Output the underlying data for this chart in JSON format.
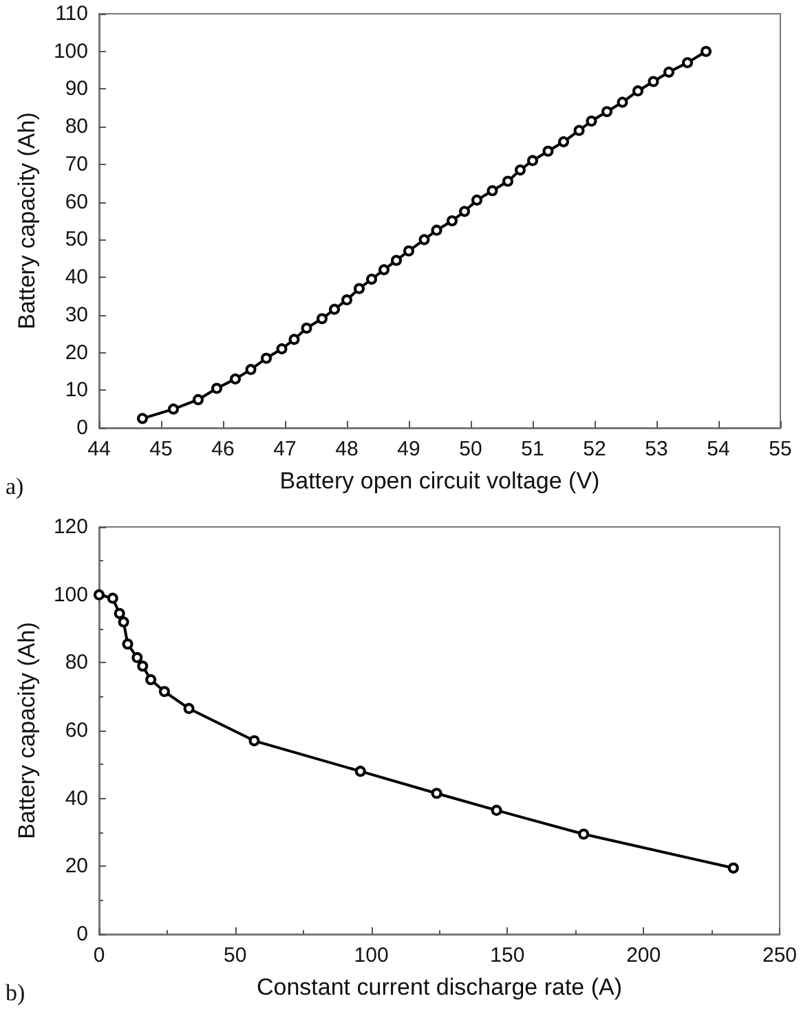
{
  "chart_data": [
    {
      "type": "line",
      "xlabel": "Battery open circuit voltage (V)",
      "ylabel": "Battery capacity (Ah)",
      "annotations": [
        "a)"
      ],
      "x": [
        44.7,
        45.2,
        45.6,
        45.9,
        46.2,
        46.45,
        46.7,
        46.95,
        47.15,
        47.35,
        47.6,
        47.8,
        48.0,
        48.2,
        48.4,
        48.6,
        48.8,
        49.0,
        49.25,
        49.45,
        49.7,
        49.9,
        50.1,
        50.35,
        50.6,
        50.8,
        51.0,
        51.25,
        51.5,
        51.75,
        51.95,
        52.2,
        52.45,
        52.7,
        52.95,
        53.2,
        53.5,
        53.8
      ],
      "series": [
        {
          "color": "#000000",
          "values": [
            2.5,
            5,
            7.5,
            10.5,
            13,
            15.5,
            18.5,
            21,
            23.5,
            26.5,
            29,
            31.5,
            34,
            37,
            39.5,
            42,
            44.5,
            47,
            50,
            52.5,
            55,
            57.5,
            60.5,
            63,
            65.5,
            68.5,
            71,
            73.5,
            76,
            79,
            81.5,
            84,
            86.5,
            89.5,
            92,
            94.5,
            97,
            100
          ]
        }
      ],
      "xlim": [
        44,
        55
      ],
      "xticks": [
        44,
        45,
        46,
        47,
        48,
        49,
        50,
        51,
        52,
        53,
        54,
        55
      ],
      "ylim": [
        0,
        110
      ],
      "yticks": [
        0,
        10,
        20,
        30,
        40,
        50,
        60,
        70,
        80,
        90,
        100,
        110
      ],
      "grid": false,
      "marker": "circle",
      "line_style": "solid"
    },
    {
      "type": "line",
      "xlabel": "Constant current discharge rate (A)",
      "ylabel": "Battery capacity (Ah)",
      "annotations": [
        "b)"
      ],
      "x": [
        0,
        5,
        7.5,
        9,
        10.5,
        14,
        16,
        19,
        24,
        33,
        57,
        96,
        124,
        146,
        178,
        233
      ],
      "series": [
        {
          "color": "#000000",
          "values": [
            100,
            99,
            94.5,
            92,
            85.5,
            81.5,
            79,
            75,
            71.5,
            66.5,
            57,
            48,
            41.5,
            36.5,
            29.5,
            19.5
          ]
        }
      ],
      "xlim": [
        0,
        250
      ],
      "xticks": [
        0,
        50,
        100,
        150,
        200,
        250
      ],
      "ylim": [
        0,
        120
      ],
      "yticks": [
        0,
        20,
        40,
        60,
        80,
        100,
        120
      ],
      "grid": false,
      "marker": "circle",
      "line_style": "solid"
    }
  ]
}
